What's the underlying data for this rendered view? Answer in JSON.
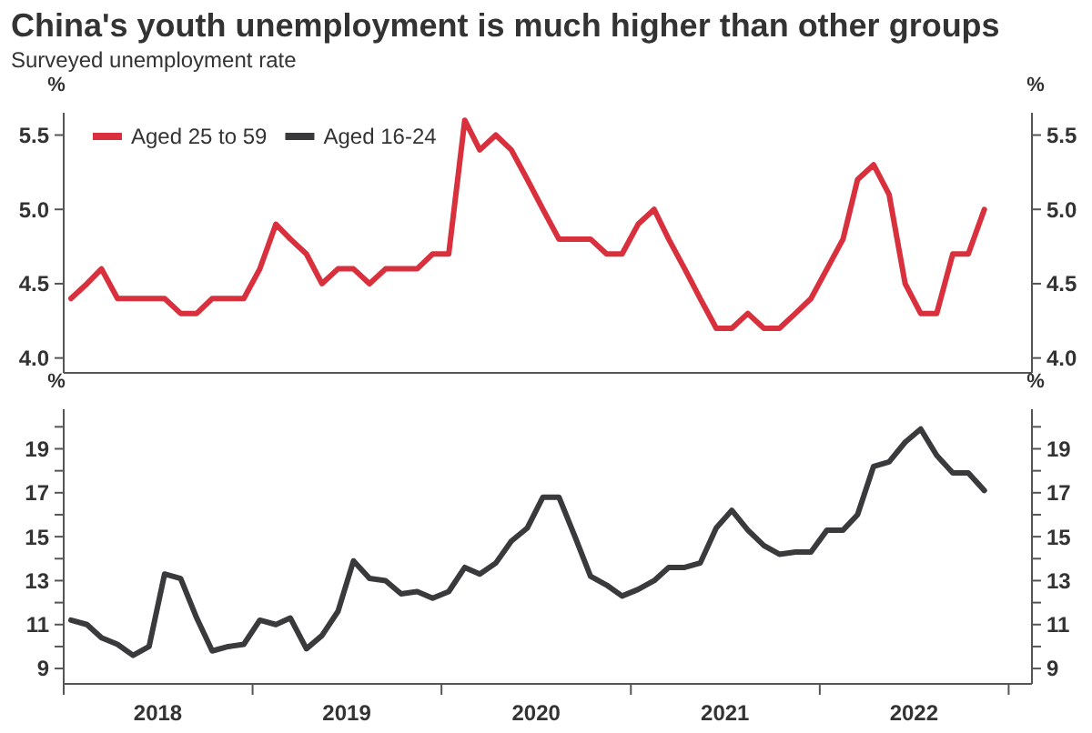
{
  "chart_data": [
    {
      "type": "line",
      "title": "China's youth unemployment is much higher than other groups",
      "subtitle": "Surveyed unemployment rate",
      "ylabel": "%",
      "y2label": "%",
      "x": [
        "2018-01-15",
        "2018-02-15",
        "2018-03-15",
        "2018-04-15",
        "2018-05-15",
        "2018-06-15",
        "2018-07-15",
        "2018-08-15",
        "2018-09-15",
        "2018-10-15",
        "2018-11-15",
        "2018-12-15",
        "2019-01-15",
        "2019-02-15",
        "2019-03-15",
        "2019-04-15",
        "2019-05-15",
        "2019-06-15",
        "2019-07-15",
        "2019-08-15",
        "2019-09-15",
        "2019-10-15",
        "2019-11-15",
        "2019-12-15",
        "2020-01-15",
        "2020-02-15",
        "2020-03-15",
        "2020-04-15",
        "2020-05-15",
        "2020-06-15",
        "2020-07-15",
        "2020-08-15",
        "2020-09-15",
        "2020-10-15",
        "2020-11-15",
        "2020-12-15",
        "2021-01-15",
        "2021-02-15",
        "2021-03-15",
        "2021-04-15",
        "2021-05-15",
        "2021-06-15",
        "2021-07-15",
        "2021-08-15",
        "2021-09-15",
        "2021-10-15",
        "2021-11-15",
        "2021-12-15",
        "2022-01-15",
        "2022-02-15",
        "2022-03-15",
        "2022-04-15",
        "2022-05-15",
        "2022-06-15",
        "2022-07-15",
        "2022-08-15",
        "2022-09-15",
        "2022-10-15",
        "2022-11-15"
      ],
      "series": [
        {
          "name": "Aged 25 to 59",
          "color": "#d8303c",
          "values": [
            4.4,
            4.5,
            4.6,
            4.4,
            4.4,
            4.4,
            4.4,
            4.3,
            4.3,
            4.4,
            4.4,
            4.4,
            4.6,
            4.9,
            4.8,
            4.7,
            4.5,
            4.6,
            4.6,
            4.5,
            4.6,
            4.6,
            4.6,
            4.7,
            4.7,
            5.6,
            5.4,
            5.5,
            5.4,
            5.2,
            5.0,
            4.8,
            4.8,
            4.8,
            4.7,
            4.7,
            4.9,
            5.0,
            4.8,
            4.6,
            4.4,
            4.2,
            4.2,
            4.3,
            4.2,
            4.2,
            4.3,
            4.4,
            4.6,
            4.8,
            5.2,
            5.3,
            5.1,
            4.5,
            4.3,
            4.3,
            4.7,
            4.7,
            5.0
          ]
        }
      ],
      "xlim": [
        "2018-01-01",
        "2023-02-15"
      ],
      "ylim": [
        3.9,
        5.65
      ],
      "yticks": [
        {
          "value": 4,
          "label": "4.0"
        },
        {
          "value": 4.5,
          "label": "4.5"
        },
        {
          "value": 5,
          "label": "5.0"
        },
        {
          "value": 5.5,
          "label": "5.5"
        }
      ],
      "y2lim": [
        3.9,
        5.65
      ],
      "y2ticks": [
        {
          "value": 4,
          "label": "4.0"
        },
        {
          "value": 4.5,
          "label": "4.5"
        },
        {
          "value": 5,
          "label": "5.0"
        },
        {
          "value": 5.5,
          "label": "5.5"
        }
      ],
      "tick_labels": "y",
      "grid": false,
      "legend": "top left",
      "marker": "none",
      "line_style": "solid"
    },
    {
      "type": "line",
      "ylabel": "%",
      "y2label": "%",
      "x": [
        "2018-01-15",
        "2018-02-15",
        "2018-03-15",
        "2018-04-15",
        "2018-05-15",
        "2018-06-15",
        "2018-07-15",
        "2018-08-15",
        "2018-09-15",
        "2018-10-15",
        "2018-11-15",
        "2018-12-15",
        "2019-01-15",
        "2019-02-15",
        "2019-03-15",
        "2019-04-15",
        "2019-05-15",
        "2019-06-15",
        "2019-07-15",
        "2019-08-15",
        "2019-09-15",
        "2019-10-15",
        "2019-11-15",
        "2019-12-15",
        "2020-01-15",
        "2020-02-15",
        "2020-03-15",
        "2020-04-15",
        "2020-05-15",
        "2020-06-15",
        "2020-07-15",
        "2020-08-15",
        "2020-09-15",
        "2020-10-15",
        "2020-11-15",
        "2020-12-15",
        "2021-01-15",
        "2021-02-15",
        "2021-03-15",
        "2021-04-15",
        "2021-05-15",
        "2021-06-15",
        "2021-07-15",
        "2021-08-15",
        "2021-09-15",
        "2021-10-15",
        "2021-11-15",
        "2021-12-15",
        "2022-01-15",
        "2022-02-15",
        "2022-03-15",
        "2022-04-15",
        "2022-05-15",
        "2022-06-15",
        "2022-07-15",
        "2022-08-15",
        "2022-09-15",
        "2022-10-15",
        "2022-11-15"
      ],
      "series": [
        {
          "name": "Aged 16-24",
          "color": "#3a3a3c",
          "values": [
            11.2,
            11.0,
            10.4,
            10.1,
            9.6,
            10.0,
            13.3,
            13.1,
            11.3,
            9.8,
            10.0,
            10.1,
            11.2,
            11.0,
            11.3,
            9.9,
            10.5,
            11.6,
            13.9,
            13.1,
            13.0,
            12.4,
            12.5,
            12.2,
            12.5,
            13.6,
            13.3,
            13.8,
            14.8,
            15.4,
            16.8,
            16.8,
            15.0,
            13.2,
            12.8,
            12.3,
            12.6,
            13.0,
            13.6,
            13.6,
            13.8,
            15.4,
            16.2,
            15.3,
            14.6,
            14.2,
            14.3,
            14.3,
            15.3,
            15.3,
            16.0,
            18.2,
            18.4,
            19.3,
            19.9,
            18.7,
            17.9,
            17.9,
            17.1
          ]
        }
      ],
      "xlim": [
        "2018-01-01",
        "2023-02-15"
      ],
      "ylim": [
        8.3,
        20.8
      ],
      "xticks": [
        {
          "value": "2018-01-01",
          "label": null
        },
        {
          "value": "2018-07-02",
          "label": "2018"
        },
        {
          "value": "2019-01-01",
          "label": null
        },
        {
          "value": "2019-07-02",
          "label": "2019"
        },
        {
          "value": "2020-01-01",
          "label": null
        },
        {
          "value": "2020-07-02",
          "label": "2020"
        },
        {
          "value": "2021-01-01",
          "label": null
        },
        {
          "value": "2021-07-02",
          "label": "2021"
        },
        {
          "value": "2022-01-01",
          "label": null
        },
        {
          "value": "2022-07-02",
          "label": "2022"
        },
        {
          "value": "2023-01-01",
          "label": null
        }
      ],
      "yticks": [
        9,
        {
          "value": 10,
          "label": null
        },
        11,
        {
          "value": 12,
          "label": null
        },
        13,
        {
          "value": 14,
          "label": null
        },
        15,
        {
          "value": 16,
          "label": null
        },
        17,
        {
          "value": 18,
          "label": null
        },
        19,
        {
          "value": 20,
          "label": null
        }
      ],
      "y2lim": [
        8.3,
        20.8
      ],
      "y2ticks": [
        9,
        {
          "value": 10,
          "label": null
        },
        11,
        {
          "value": 12,
          "label": null
        },
        13,
        {
          "value": 14,
          "label": null
        },
        15,
        {
          "value": 16,
          "label": null
        },
        17,
        {
          "value": 18,
          "label": null
        },
        19,
        {
          "value": 20,
          "label": null
        }
      ],
      "grid": false,
      "legend": "top left",
      "marker": "none",
      "line_style": "solid"
    }
  ]
}
